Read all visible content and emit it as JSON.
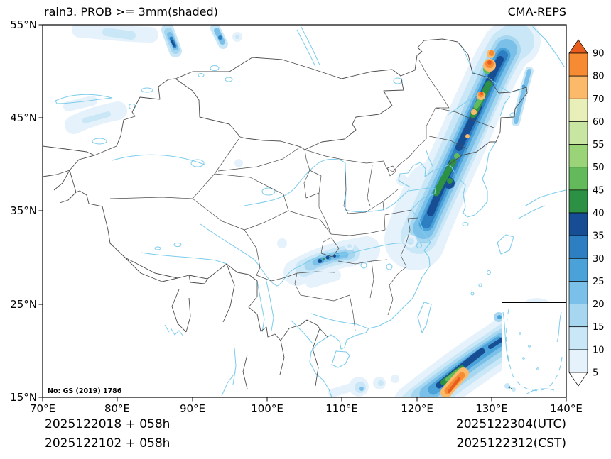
{
  "header": {
    "title": "rain3. PROB >= 3mm(shaded)",
    "model": "CMA-REPS"
  },
  "axes": {
    "lat": [
      "55°N",
      "45°N",
      "35°N",
      "25°N",
      "15°N"
    ],
    "lon": [
      "70°E",
      "80°E",
      "90°E",
      "100°E",
      "110°E",
      "120°E",
      "130°E",
      "140°E"
    ]
  },
  "colorbar": {
    "labels": [
      "90",
      "80",
      "70",
      "60",
      "55",
      "50",
      "45",
      "40",
      "35",
      "30",
      "25",
      "20",
      "15",
      "10",
      "5"
    ],
    "segment_colors": [
      "#f68b33",
      "#fbb96a",
      "#e9efb8",
      "#c8e6a2",
      "#9bd478",
      "#63ba5a",
      "#2c9144",
      "#174d92",
      "#2e7fc2",
      "#4aa2d9",
      "#7ac0e8",
      "#a6d6f0",
      "#c9e7f6",
      "#e5f2fb"
    ],
    "arrow_top_color": "#e85c1e",
    "arrow_bottom_color": "#ffffff",
    "palette": {
      "5": "#e5f2fb",
      "10": "#c9e7f6",
      "15": "#a6d6f0",
      "20": "#7ac0e8",
      "25": "#4aa2d9",
      "30": "#2e7fc2",
      "35": "#174d92",
      "40": "#2c9144",
      "45": "#63ba5a",
      "50": "#9bd478",
      "55": "#c8e6a2",
      "60": "#e9efb8",
      "70": "#fbb96a",
      "80": "#f68b33",
      "90": "#e85c1e"
    }
  },
  "map": {
    "license": "No: GS (2019) 1786",
    "coast_color": "#7cccec",
    "border_color": "#4d4d4d"
  },
  "footer": {
    "init_a": "2025122018 + 058h",
    "init_b": "2025122102 + 058h",
    "valid_utc": "2025122304(UTC)",
    "valid_cst": "2025122312(CST)"
  }
}
